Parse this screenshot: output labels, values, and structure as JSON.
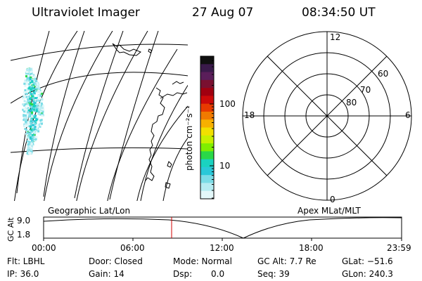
{
  "header": {
    "instrument": "Ultraviolet Imager",
    "date": "27 Aug 07",
    "time": "08:34:50 UT"
  },
  "colorbar": {
    "unit_label": "photon cm⁻²s⁻¹",
    "ticks": [
      "100",
      "10"
    ],
    "colors": [
      "#101010",
      "#3a1a4a",
      "#5a1e5a",
      "#7a1030",
      "#a00010",
      "#cc0a0a",
      "#e83a00",
      "#f07a00",
      "#f7b000",
      "#f2e000",
      "#c8f000",
      "#80ee00",
      "#2ad848",
      "#1ad2c0",
      "#2ac8d8",
      "#7adce6",
      "#b6ecf2",
      "#e4f8fa"
    ]
  },
  "polar_plot": {
    "mlt_labels": {
      "top": "12",
      "left": "18",
      "right": "6",
      "bottom": "0"
    },
    "lat_labels": [
      "60",
      "70",
      "80"
    ]
  },
  "timeline": {
    "left_label": "Geographic Lat/Lon",
    "right_label": "Apex MLat/MLT",
    "axis_label": "GC Alt",
    "y_ticks": [
      "9.0",
      "1.8"
    ],
    "x_ticks": [
      "00:00",
      "06:00",
      "12:00",
      "18:00",
      "23:59"
    ],
    "current_time_hours": 8.58
  },
  "status": {
    "flt": "Flt: LBHL",
    "door": "Door: Closed",
    "mode": "Mode: Normal",
    "gc_alt": "GC Alt: 7.7 Re",
    "glat": "GLat: −51.6",
    "ip": "IP: 36.0",
    "gain": "Gain: 14",
    "dsp_label": "Dsp:",
    "dsp_value": "0.0",
    "seq": "Seq: 39",
    "glon": "GLon: 240.3"
  }
}
